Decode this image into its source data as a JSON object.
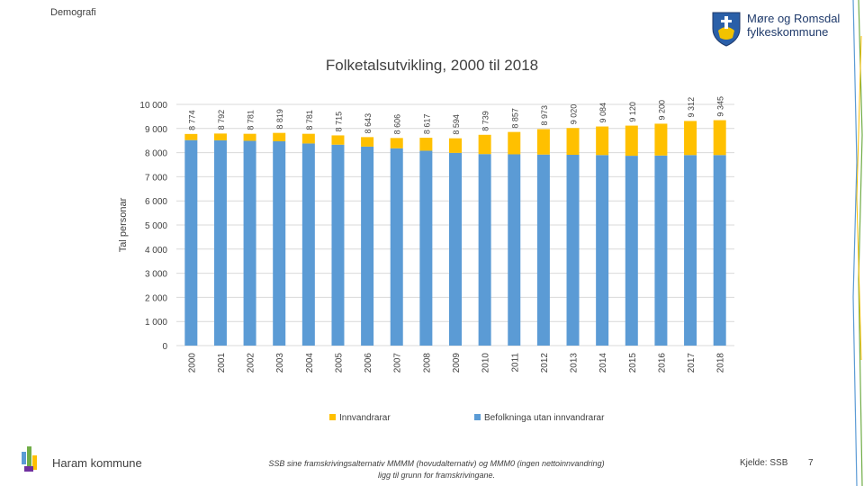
{
  "header": {
    "section_label": "Demografi",
    "logo_line1": "Møre og Romsdal",
    "logo_line2": "fylkeskommune"
  },
  "footer": {
    "municipality": "Haram kommune",
    "note_line1": "SSB sine framskrivingsalternativ MMMM (hovudalternativ) og MMM0 (ingen nettoinnvandring)",
    "note_line2": "ligg til grunn for framskrivingane.",
    "source": "Kjelde: SSB",
    "page_number": "7"
  },
  "colors": {
    "immigrants": "#FFC000",
    "non_immigrants": "#5B9BD5",
    "grid": "#D9D9D9",
    "text": "#404040"
  },
  "chart_data": {
    "type": "bar",
    "stacked": true,
    "title": "Folketalsutvikling, 2000 til 2018",
    "xlabel": "",
    "ylabel": "Tal personar",
    "ylim": [
      0,
      10000
    ],
    "yticks": [
      0,
      1000,
      2000,
      3000,
      4000,
      5000,
      6000,
      7000,
      8000,
      9000,
      10000
    ],
    "ytick_labels": [
      "0",
      "1 000",
      "2 000",
      "3 000",
      "4 000",
      "5 000",
      "6 000",
      "7 000",
      "8 000",
      "9 000",
      "10 000"
    ],
    "categories": [
      "2000",
      "2001",
      "2002",
      "2003",
      "2004",
      "2005",
      "2006",
      "2007",
      "2008",
      "2009",
      "2010",
      "2011",
      "2012",
      "2013",
      "2014",
      "2015",
      "2016",
      "2017",
      "2018"
    ],
    "series": [
      {
        "name": "Befolkninga utan innvandrarar",
        "values": [
          8520,
          8510,
          8490,
          8470,
          8380,
          8330,
          8250,
          8180,
          8080,
          7990,
          7940,
          7930,
          7920,
          7910,
          7900,
          7870,
          7880,
          7900,
          7900
        ]
      },
      {
        "name": "Innvandrarar",
        "values": [
          254,
          282,
          291,
          349,
          401,
          385,
          393,
          426,
          537,
          604,
          799,
          927,
          1053,
          1110,
          1184,
          1250,
          1320,
          1412,
          1445
        ]
      }
    ],
    "totals": [
      8774,
      8792,
      8781,
      8819,
      8781,
      8715,
      8643,
      8606,
      8617,
      8594,
      8739,
      8857,
      8973,
      9020,
      9084,
      9120,
      9200,
      9312,
      9345
    ],
    "total_labels": [
      "8 774",
      "8 792",
      "8 781",
      "8 819",
      "8 781",
      "8 715",
      "8 643",
      "8 606",
      "8 617",
      "8 594",
      "8 739",
      "8 857",
      "8 973",
      "9 020",
      "9 084",
      "9 120",
      "9 200",
      "9 312",
      "9 345"
    ],
    "legend": {
      "position": "bottom",
      "entries": [
        "Innvandrarar",
        "Befolkninga utan innvandrarar"
      ]
    }
  }
}
